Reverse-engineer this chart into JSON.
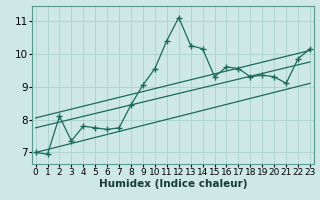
{
  "xlabel": "Humidex (Indice chaleur)",
  "bg_color": "#cde8e6",
  "grid_color": "#b0d4d2",
  "line_color": "#1a6b5e",
  "x_ticks": [
    0,
    1,
    2,
    3,
    4,
    5,
    6,
    7,
    8,
    9,
    10,
    11,
    12,
    13,
    14,
    15,
    16,
    17,
    18,
    19,
    20,
    21,
    22,
    23
  ],
  "y_ticks": [
    7,
    8,
    9,
    10,
    11
  ],
  "xlim": [
    -0.3,
    23.3
  ],
  "ylim": [
    6.65,
    11.45
  ],
  "main_line_x": [
    0,
    1,
    2,
    3,
    4,
    5,
    6,
    7,
    8,
    9,
    10,
    11,
    12,
    13,
    14,
    15,
    16,
    17,
    18,
    19,
    20,
    21,
    22,
    23
  ],
  "main_line_y": [
    7.0,
    6.95,
    8.1,
    7.35,
    7.8,
    7.75,
    7.7,
    7.75,
    8.45,
    9.05,
    9.55,
    10.4,
    11.1,
    10.25,
    10.15,
    9.3,
    9.6,
    9.55,
    9.3,
    9.35,
    9.3,
    9.1,
    9.85,
    10.15
  ],
  "lower_line_x": [
    0,
    23
  ],
  "lower_line_y": [
    7.0,
    9.1
  ],
  "mid_line_x": [
    0,
    23
  ],
  "mid_line_y": [
    7.75,
    9.75
  ],
  "upper_line_x": [
    0,
    23
  ],
  "upper_line_y": [
    8.05,
    10.1
  ],
  "tick_fontsize": 6.5,
  "label_fontsize": 7.5
}
